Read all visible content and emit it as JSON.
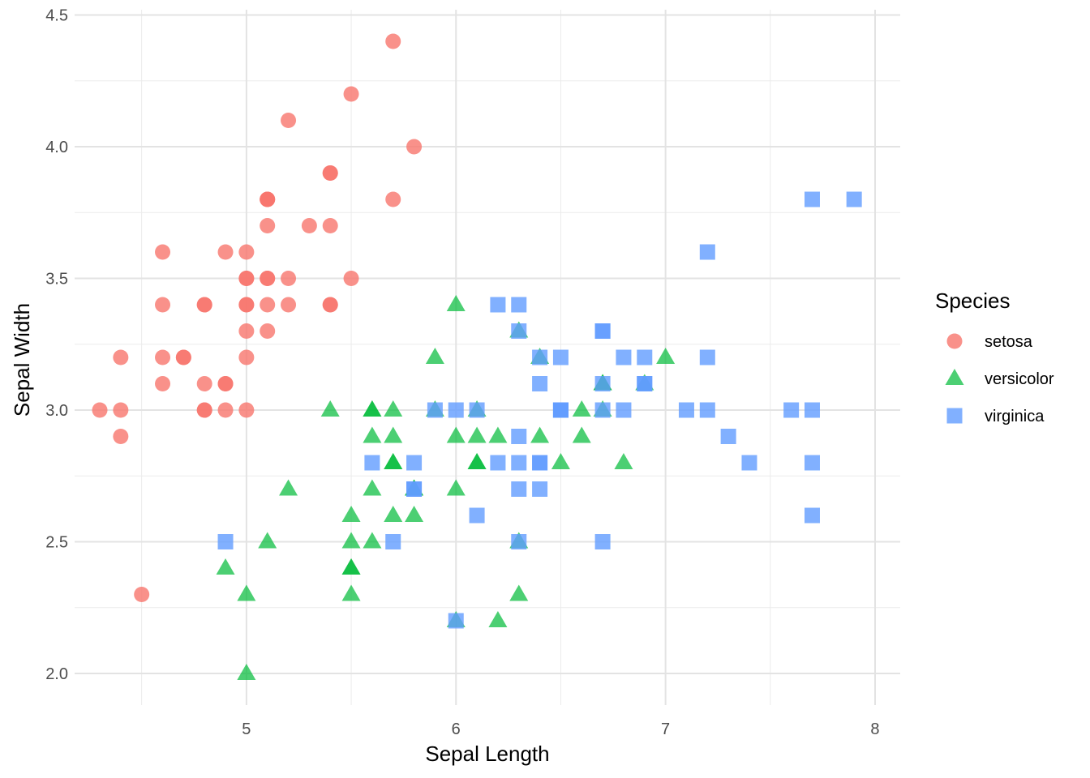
{
  "chart_data": {
    "type": "scatter",
    "title": "",
    "xlabel": "Sepal Length",
    "ylabel": "Sepal Width",
    "xlim": [
      4.18,
      8.12
    ],
    "ylim": [
      1.88,
      4.52
    ],
    "x_ticks": [
      5,
      6,
      7,
      8
    ],
    "x_tick_labels": [
      "5",
      "6",
      "7",
      "8"
    ],
    "y_ticks": [
      2.0,
      2.5,
      3.0,
      3.5,
      4.0,
      4.5
    ],
    "y_tick_labels": [
      "2.0",
      "2.5",
      "3.0",
      "3.5",
      "4.0",
      "4.5"
    ],
    "grid": true,
    "legend": {
      "title": "Species",
      "position": "right"
    },
    "series": [
      {
        "name": "setosa",
        "color": "#F8766D",
        "shape": "circle",
        "points": [
          [
            5.1,
            3.5
          ],
          [
            4.9,
            3.0
          ],
          [
            4.7,
            3.2
          ],
          [
            4.6,
            3.1
          ],
          [
            5.0,
            3.6
          ],
          [
            5.4,
            3.9
          ],
          [
            4.6,
            3.4
          ],
          [
            5.0,
            3.4
          ],
          [
            4.4,
            2.9
          ],
          [
            4.9,
            3.1
          ],
          [
            5.4,
            3.7
          ],
          [
            4.8,
            3.4
          ],
          [
            4.8,
            3.0
          ],
          [
            4.3,
            3.0
          ],
          [
            5.8,
            4.0
          ],
          [
            5.7,
            4.4
          ],
          [
            5.4,
            3.9
          ],
          [
            5.1,
            3.5
          ],
          [
            5.7,
            3.8
          ],
          [
            5.1,
            3.8
          ],
          [
            5.4,
            3.4
          ],
          [
            5.1,
            3.7
          ],
          [
            4.6,
            3.6
          ],
          [
            5.1,
            3.3
          ],
          [
            4.8,
            3.4
          ],
          [
            5.0,
            3.0
          ],
          [
            5.0,
            3.4
          ],
          [
            5.2,
            3.5
          ],
          [
            5.2,
            3.4
          ],
          [
            4.7,
            3.2
          ],
          [
            4.8,
            3.1
          ],
          [
            5.4,
            3.4
          ],
          [
            5.2,
            4.1
          ],
          [
            5.5,
            4.2
          ],
          [
            4.9,
            3.1
          ],
          [
            5.0,
            3.2
          ],
          [
            5.5,
            3.5
          ],
          [
            4.9,
            3.6
          ],
          [
            4.4,
            3.0
          ],
          [
            5.1,
            3.4
          ],
          [
            5.0,
            3.5
          ],
          [
            4.5,
            2.3
          ],
          [
            4.4,
            3.2
          ],
          [
            5.0,
            3.5
          ],
          [
            5.1,
            3.8
          ],
          [
            4.8,
            3.0
          ],
          [
            5.1,
            3.8
          ],
          [
            4.6,
            3.2
          ],
          [
            5.3,
            3.7
          ],
          [
            5.0,
            3.3
          ]
        ]
      },
      {
        "name": "versicolor",
        "color": "#00BA38",
        "shape": "triangle",
        "points": [
          [
            7.0,
            3.2
          ],
          [
            6.4,
            3.2
          ],
          [
            6.9,
            3.1
          ],
          [
            5.5,
            2.3
          ],
          [
            6.5,
            2.8
          ],
          [
            5.7,
            2.8
          ],
          [
            6.3,
            3.3
          ],
          [
            4.9,
            2.4
          ],
          [
            6.6,
            2.9
          ],
          [
            5.2,
            2.7
          ],
          [
            5.0,
            2.0
          ],
          [
            5.9,
            3.0
          ],
          [
            6.0,
            2.2
          ],
          [
            6.1,
            2.9
          ],
          [
            5.6,
            2.9
          ],
          [
            6.7,
            3.1
          ],
          [
            5.6,
            3.0
          ],
          [
            5.8,
            2.7
          ],
          [
            6.2,
            2.2
          ],
          [
            5.6,
            2.5
          ],
          [
            5.9,
            3.2
          ],
          [
            6.1,
            2.8
          ],
          [
            6.3,
            2.5
          ],
          [
            6.1,
            2.8
          ],
          [
            6.4,
            2.9
          ],
          [
            6.6,
            3.0
          ],
          [
            6.8,
            2.8
          ],
          [
            6.7,
            3.0
          ],
          [
            6.0,
            2.9
          ],
          [
            5.7,
            2.6
          ],
          [
            5.5,
            2.4
          ],
          [
            5.5,
            2.4
          ],
          [
            5.8,
            2.7
          ],
          [
            6.0,
            2.7
          ],
          [
            5.4,
            3.0
          ],
          [
            6.0,
            3.4
          ],
          [
            6.7,
            3.1
          ],
          [
            6.3,
            2.3
          ],
          [
            5.6,
            3.0
          ],
          [
            5.5,
            2.5
          ],
          [
            5.5,
            2.6
          ],
          [
            6.1,
            3.0
          ],
          [
            5.8,
            2.6
          ],
          [
            5.0,
            2.3
          ],
          [
            5.6,
            2.7
          ],
          [
            5.7,
            3.0
          ],
          [
            5.7,
            2.9
          ],
          [
            6.2,
            2.9
          ],
          [
            5.1,
            2.5
          ],
          [
            5.7,
            2.8
          ]
        ]
      },
      {
        "name": "virginica",
        "color": "#619CFF",
        "shape": "square",
        "points": [
          [
            6.3,
            3.3
          ],
          [
            5.8,
            2.7
          ],
          [
            7.1,
            3.0
          ],
          [
            6.3,
            2.9
          ],
          [
            6.5,
            3.0
          ],
          [
            7.6,
            3.0
          ],
          [
            4.9,
            2.5
          ],
          [
            7.3,
            2.9
          ],
          [
            6.7,
            2.5
          ],
          [
            7.2,
            3.6
          ],
          [
            6.5,
            3.2
          ],
          [
            6.4,
            2.7
          ],
          [
            6.8,
            3.0
          ],
          [
            5.7,
            2.5
          ],
          [
            5.8,
            2.8
          ],
          [
            6.4,
            3.2
          ],
          [
            6.5,
            3.0
          ],
          [
            7.7,
            3.8
          ],
          [
            7.7,
            2.6
          ],
          [
            6.0,
            2.2
          ],
          [
            6.9,
            3.2
          ],
          [
            5.6,
            2.8
          ],
          [
            7.7,
            2.8
          ],
          [
            6.3,
            2.7
          ],
          [
            6.7,
            3.3
          ],
          [
            7.2,
            3.2
          ],
          [
            6.2,
            2.8
          ],
          [
            6.1,
            3.0
          ],
          [
            6.4,
            2.8
          ],
          [
            7.2,
            3.0
          ],
          [
            7.4,
            2.8
          ],
          [
            7.9,
            3.8
          ],
          [
            6.4,
            2.8
          ],
          [
            6.3,
            2.8
          ],
          [
            6.1,
            2.6
          ],
          [
            7.7,
            3.0
          ],
          [
            6.3,
            3.4
          ],
          [
            6.4,
            3.1
          ],
          [
            6.0,
            3.0
          ],
          [
            6.9,
            3.1
          ],
          [
            6.7,
            3.1
          ],
          [
            6.9,
            3.1
          ],
          [
            5.8,
            2.7
          ],
          [
            6.8,
            3.2
          ],
          [
            6.7,
            3.3
          ],
          [
            6.7,
            3.0
          ],
          [
            6.3,
            2.5
          ],
          [
            6.5,
            3.0
          ],
          [
            6.2,
            3.4
          ],
          [
            5.9,
            3.0
          ]
        ]
      }
    ]
  }
}
